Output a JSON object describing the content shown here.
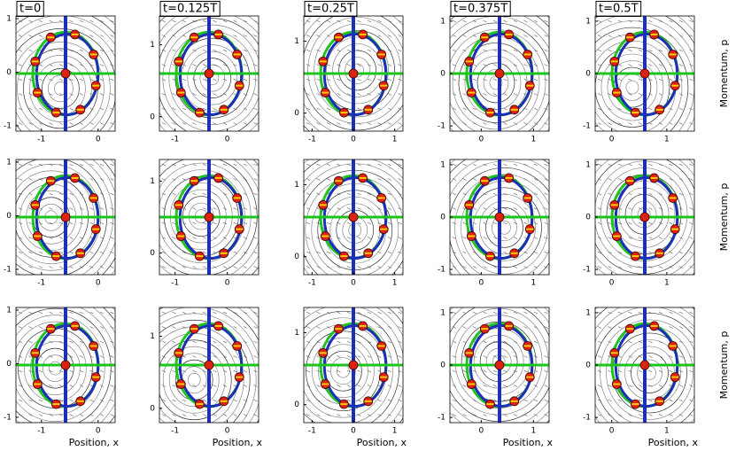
{
  "chart_data": {
    "type": "phase-grid",
    "columns": [
      {
        "title": "t=0",
        "xlabel": "Position, x"
      },
      {
        "title": "t=0.125T",
        "xlabel": "Position, x"
      },
      {
        "title": "t=0.25T",
        "xlabel": "Position, x"
      },
      {
        "title": "t=0.375T",
        "xlabel": "Position, x"
      },
      {
        "title": "t=0.5T",
        "xlabel": "Position, x"
      }
    ],
    "rows": [
      {
        "ylabel": "Momentum, p"
      },
      {
        "ylabel": "Momentum, p"
      },
      {
        "ylabel": "Momentum, p"
      }
    ],
    "panels": [
      {
        "xlim": [
          -1.45,
          0.3
        ],
        "ylim": [
          -1.1,
          1.05
        ],
        "xticks": [
          -1,
          0
        ],
        "yticks": [
          -1,
          0,
          1
        ]
      },
      {
        "xlim": [
          -1.3,
          0.6
        ],
        "ylim": [
          -0.2,
          1.4
        ],
        "xticks": [
          -1,
          0
        ],
        "yticks": [
          0,
          1
        ]
      },
      {
        "xlim": [
          -1.2,
          1.2
        ],
        "ylim": [
          -0.25,
          1.35
        ],
        "xticks": [
          -1,
          0,
          1
        ],
        "yticks": [
          0,
          1
        ]
      },
      {
        "xlim": [
          -0.6,
          1.3
        ],
        "ylim": [
          -1.1,
          1.1
        ],
        "xticks": [
          0,
          1
        ],
        "yticks": [
          -1,
          0,
          1
        ]
      },
      {
        "xlim": [
          -0.3,
          1.5
        ],
        "ylim": [
          -1.1,
          1.1
        ],
        "xticks": [
          0,
          1
        ],
        "yticks": [
          -1,
          0,
          1
        ]
      },
      {
        "xlim": [
          -1.45,
          0.3
        ],
        "ylim": [
          -1.1,
          1.05
        ],
        "xticks": [
          -1,
          0
        ],
        "yticks": [
          -1,
          0,
          1
        ]
      },
      {
        "xlim": [
          -1.3,
          0.6
        ],
        "ylim": [
          -0.3,
          1.3
        ],
        "xticks": [
          -1,
          0
        ],
        "yticks": [
          0,
          1
        ]
      },
      {
        "xlim": [
          -1.2,
          1.2
        ],
        "ylim": [
          -0.25,
          1.35
        ],
        "xticks": [
          -1,
          0,
          1
        ],
        "yticks": [
          0,
          1
        ]
      },
      {
        "xlim": [
          -0.6,
          1.3
        ],
        "ylim": [
          -1.1,
          1.1
        ],
        "xticks": [
          0,
          1
        ],
        "yticks": [
          -1,
          0,
          1
        ]
      },
      {
        "xlim": [
          -0.3,
          1.5
        ],
        "ylim": [
          -1.1,
          1.1
        ],
        "xticks": [
          0,
          1
        ],
        "yticks": [
          -1,
          0,
          1
        ]
      },
      {
        "xlim": [
          -1.45,
          0.3
        ],
        "ylim": [
          -1.1,
          1.05
        ],
        "xticks": [
          -1,
          0
        ],
        "yticks": [
          -1,
          0,
          1
        ]
      },
      {
        "xlim": [
          -1.3,
          0.6
        ],
        "ylim": [
          -0.2,
          1.4
        ],
        "xticks": [
          -1,
          0
        ],
        "yticks": [
          0,
          1
        ]
      },
      {
        "xlim": [
          -1.2,
          1.2
        ],
        "ylim": [
          -0.25,
          1.35
        ],
        "xticks": [
          -1,
          0,
          1
        ],
        "yticks": [
          0,
          1
        ]
      },
      {
        "xlim": [
          -0.6,
          1.3
        ],
        "ylim": [
          -1.1,
          1.1
        ],
        "xticks": [
          0,
          1
        ],
        "yticks": [
          -1,
          0,
          1
        ]
      },
      {
        "xlim": [
          -0.3,
          1.5
        ],
        "ylim": [
          -1.1,
          1.1
        ],
        "xticks": [
          0,
          1
        ],
        "yticks": [
          -1,
          0,
          1
        ]
      }
    ]
  }
}
